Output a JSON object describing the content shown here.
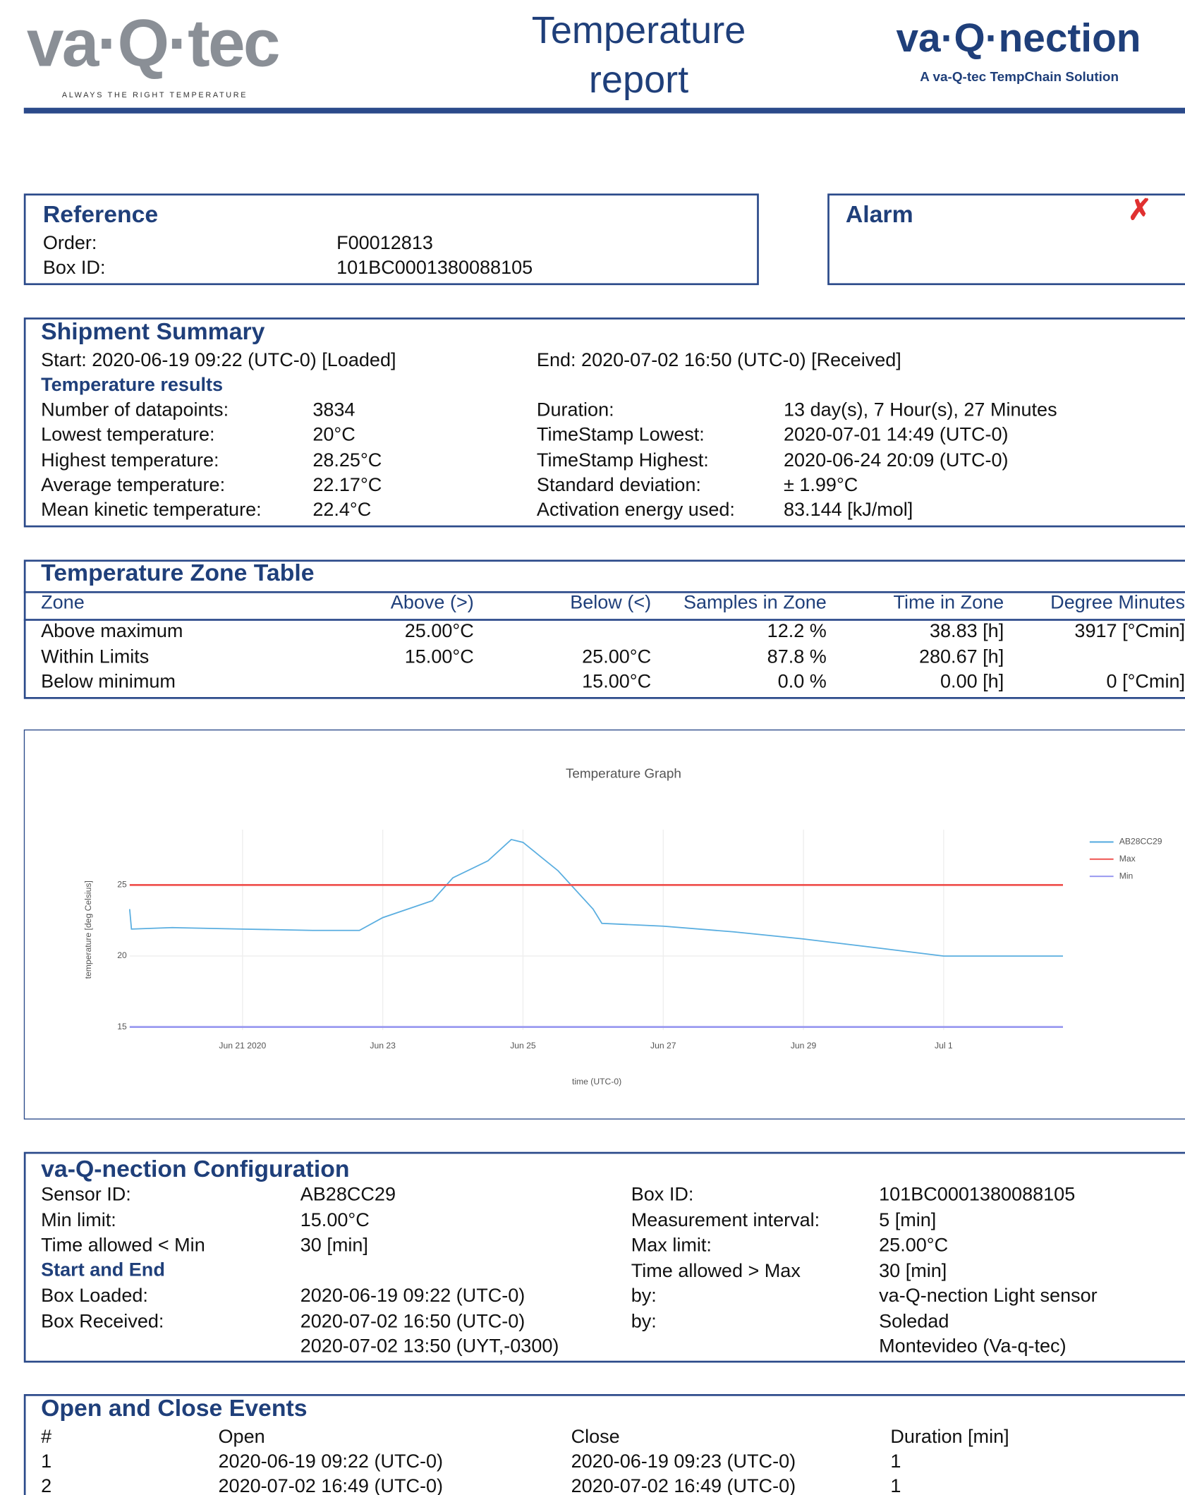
{
  "header": {
    "logo_left": "va·Q·tec",
    "logo_left_tagline": "ALWAYS THE RIGHT TEMPERATURE",
    "title": "Temperature report",
    "logo_right": "va·Q·nection",
    "logo_right_tagline": "A va-Q-tec TempChain Solution"
  },
  "reference": {
    "title": "Reference",
    "rows": [
      [
        "Order:",
        "F00012813"
      ],
      [
        "Box ID:",
        "101BC0001380088105"
      ]
    ]
  },
  "alarm": {
    "title": "Alarm"
  },
  "shipment_summary": {
    "title": "Shipment Summary",
    "start": "Start: 2020-06-19 09:22 (UTC-0) [Loaded]",
    "end": "End: 2020-07-02 16:50 (UTC-0) [Received]",
    "subtitle": "Temperature results",
    "rows": [
      [
        "Number of datapoints:",
        "3834",
        "Duration:",
        "13 day(s), 7 Hour(s), 27 Minutes"
      ],
      [
        "Lowest temperature:",
        "20°C",
        "TimeStamp Lowest:",
        "2020-07-01 14:49 (UTC-0)"
      ],
      [
        "Highest temperature:",
        "28.25°C",
        "TimeStamp Highest:",
        "2020-06-24 20:09 (UTC-0)"
      ],
      [
        "Average temperature:",
        "22.17°C",
        "Standard deviation:",
        "± 1.99°C"
      ],
      [
        "Mean kinetic temperature:",
        "22.4°C",
        "Activation energy used:",
        "83.144 [kJ/mol]"
      ]
    ]
  },
  "zone_table": {
    "title": "Temperature Zone Table",
    "columns": [
      "Zone",
      "Above (>)",
      "Below (<)",
      "Samples in Zone",
      "Time in Zone",
      "Degree Minutes"
    ],
    "rows": [
      [
        "Above maximum",
        "25.00°C",
        null,
        "12.2 %",
        "38.83 [h]",
        "3917 [°Cmin]"
      ],
      [
        "Within Limits",
        "15.00°C",
        "25.00°C",
        "87.8 %",
        "280.67 [h]",
        null
      ],
      [
        "Below minimum",
        null,
        "15.00°C",
        "0.0 %",
        "0.00 [h]",
        "0 [°Cmin]"
      ]
    ]
  },
  "chart_data": {
    "type": "line",
    "title": "Temperature Graph",
    "x_label": "time (UTC-0)",
    "y_label": "temperature [deg Celsius]",
    "xlim": [
      "2020-06-19T09:22",
      "2020-07-02T16:50"
    ],
    "xticks": [
      {
        "value": "2020-06-21",
        "label": "Jun 21 2020"
      },
      {
        "value": "2020-06-23",
        "label": "Jun 23"
      },
      {
        "value": "2020-06-25",
        "label": "Jun 25"
      },
      {
        "value": "2020-06-27",
        "label": "Jun 27"
      },
      {
        "value": "2020-06-29",
        "label": "Jun 29"
      },
      {
        "value": "2020-07-01",
        "label": "Jul 1"
      }
    ],
    "ylim": [
      14.8,
      28.9
    ],
    "yticks": [
      15,
      20,
      25
    ],
    "grid": true,
    "legend": "top-right",
    "series": [
      {
        "name": "AB28CC29",
        "color": "#5aaee0",
        "x": [
          "2020-06-19T09:22",
          "2020-06-19T10:00",
          "2020-06-20T00:00",
          "2020-06-21T00:00",
          "2020-06-22T00:00",
          "2020-06-22T16:00",
          "2020-06-23T00:00",
          "2020-06-23T17:00",
          "2020-06-24T00:00",
          "2020-06-24T12:00",
          "2020-06-24T20:00",
          "2020-06-25T00:00",
          "2020-06-25T12:00",
          "2020-06-26T00:00",
          "2020-06-26T03:00",
          "2020-06-27T00:00",
          "2020-06-28T00:00",
          "2020-06-29T00:00",
          "2020-06-30T00:00",
          "2020-07-01T00:00",
          "2020-07-02T00:00",
          "2020-07-02T16:50"
        ],
        "values": [
          23.3,
          21.9,
          22.0,
          21.9,
          21.8,
          21.8,
          22.7,
          23.9,
          25.5,
          26.7,
          28.2,
          28.0,
          26.0,
          23.3,
          22.3,
          22.1,
          21.7,
          21.2,
          20.6,
          20.0,
          20.0,
          20.0
        ]
      },
      {
        "name": "Max",
        "color": "#ef5350",
        "x": [
          "2020-06-19T09:22",
          "2020-07-02T16:50"
        ],
        "values": [
          25,
          25
        ]
      },
      {
        "name": "Min",
        "color": "#9a9af0",
        "x": [
          "2020-06-19T09:22",
          "2020-07-02T16:50"
        ],
        "values": [
          15,
          15
        ]
      }
    ]
  },
  "configuration": {
    "title": "va-Q-nection Configuration",
    "rows": [
      [
        "Sensor ID:",
        "AB28CC29",
        "Box ID:",
        "101BC0001380088105"
      ],
      [
        "Min limit:",
        "15.00°C",
        "Measurement interval:",
        "5 [min]"
      ],
      [
        "Time allowed < Min",
        "30 [min]",
        "Max limit:",
        "25.00°C"
      ],
      [
        null,
        null,
        "Time allowed > Max",
        "30 [min]"
      ]
    ],
    "subtitle": "Start and End",
    "rows2": [
      [
        "Box Loaded:",
        "2020-06-19 09:22 (UTC-0)",
        "by:",
        "va-Q-nection Light sensor"
      ],
      [
        "Box Received:",
        "2020-07-02 16:50 (UTC-0)",
        "by:",
        "Soledad"
      ],
      [
        null,
        "2020-07-02 13:50 (UYT,-0300)",
        null,
        "Montevideo (Va-q-tec)"
      ]
    ]
  },
  "events": {
    "title": "Open and Close Events",
    "columns": [
      "#",
      "Open",
      "Close",
      "Duration [min]"
    ],
    "rows": [
      [
        "1",
        "2020-06-19 09:22 (UTC-0)",
        "2020-06-19 09:23 (UTC-0)",
        "1"
      ],
      [
        "2",
        "2020-07-02 16:49 (UTC-0)",
        "2020-07-02 16:49 (UTC-0)",
        "1"
      ]
    ]
  }
}
